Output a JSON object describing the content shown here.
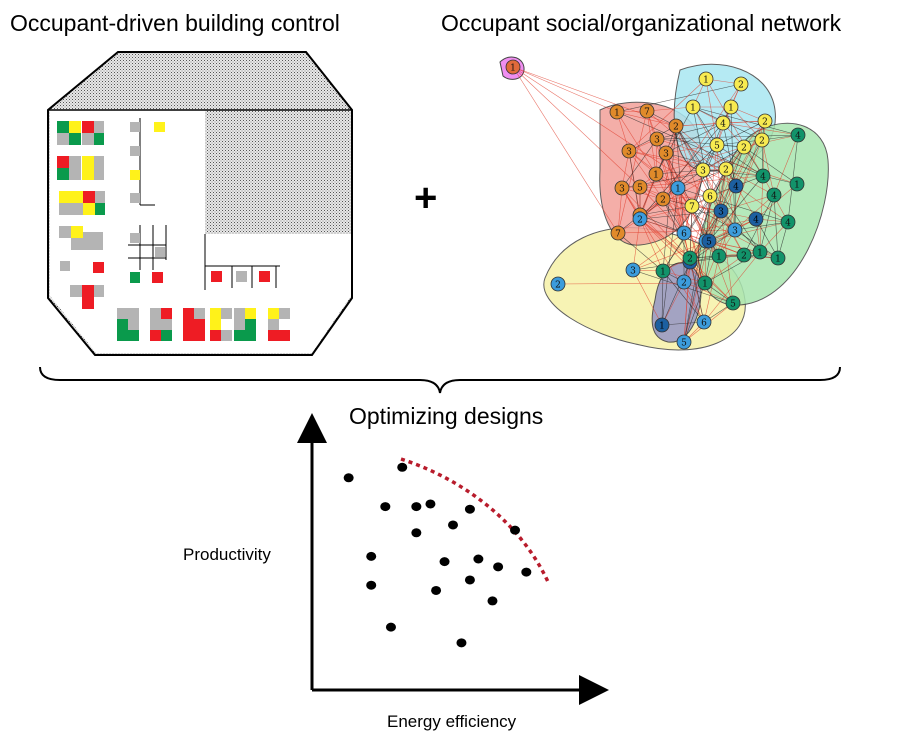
{
  "titles": {
    "building_control": "Occupant-driven building control",
    "social_network": "Occupant social/organizational network",
    "plus": "+",
    "optimizing": "Optimizing designs"
  },
  "colors": {
    "occupied_green": "#0a9a4c",
    "highlight_yellow": "#fff21a",
    "alert_red": "#ee1c24",
    "vacant_gray": "#b4b4b4",
    "network_red_group": "#f3a09a",
    "network_cyan_group": "#a9e7f2",
    "network_green_group": "#a9e6b0",
    "network_yellow_group": "#f6f2a8",
    "network_purple_group": "#9b9bc4",
    "pink_node_group": "#f08ef0",
    "node_orange": "#e08a2a",
    "node_yellow": "#f7ea50",
    "node_blue": "#3c9cdc",
    "node_darkblue": "#1c5fa0",
    "node_teal": "#12936a",
    "pareto_front": "#b81c2c"
  },
  "network_nodes": {
    "pink": [
      "1"
    ],
    "orange": [
      "1",
      "7",
      "2",
      "3",
      "3",
      "3",
      "1",
      "5",
      "3",
      "7",
      "5",
      "2"
    ],
    "yellow": [
      "1",
      "2",
      "1",
      "1",
      "4",
      "2",
      "5",
      "2",
      "2",
      "3",
      "7",
      "6",
      "2"
    ],
    "blue": [
      "1",
      "2",
      "6",
      "3",
      "2",
      "6",
      "5",
      "3"
    ],
    "darkblue": [
      "4",
      "3",
      "5",
      "4",
      "4",
      "1"
    ],
    "teal": [
      "4",
      "4",
      "1",
      "4",
      "4",
      "1",
      "1",
      "2",
      "1",
      "2",
      "1",
      "1",
      "5"
    ]
  },
  "chart_data": {
    "type": "scatter",
    "xlabel": "Energy efficiency",
    "ylabel": "Productivity",
    "points": [
      [
        0.13,
        0.81
      ],
      [
        0.32,
        0.85
      ],
      [
        0.26,
        0.7
      ],
      [
        0.37,
        0.7
      ],
      [
        0.42,
        0.71
      ],
      [
        0.56,
        0.69
      ],
      [
        0.5,
        0.63
      ],
      [
        0.37,
        0.6
      ],
      [
        0.72,
        0.61
      ],
      [
        0.21,
        0.51
      ],
      [
        0.47,
        0.49
      ],
      [
        0.59,
        0.5
      ],
      [
        0.66,
        0.47
      ],
      [
        0.76,
        0.45
      ],
      [
        0.56,
        0.42
      ],
      [
        0.21,
        0.4
      ],
      [
        0.44,
        0.38
      ],
      [
        0.64,
        0.34
      ],
      [
        0.28,
        0.24
      ],
      [
        0.53,
        0.18
      ]
    ],
    "pareto_front": "dashed curve above the points"
  }
}
